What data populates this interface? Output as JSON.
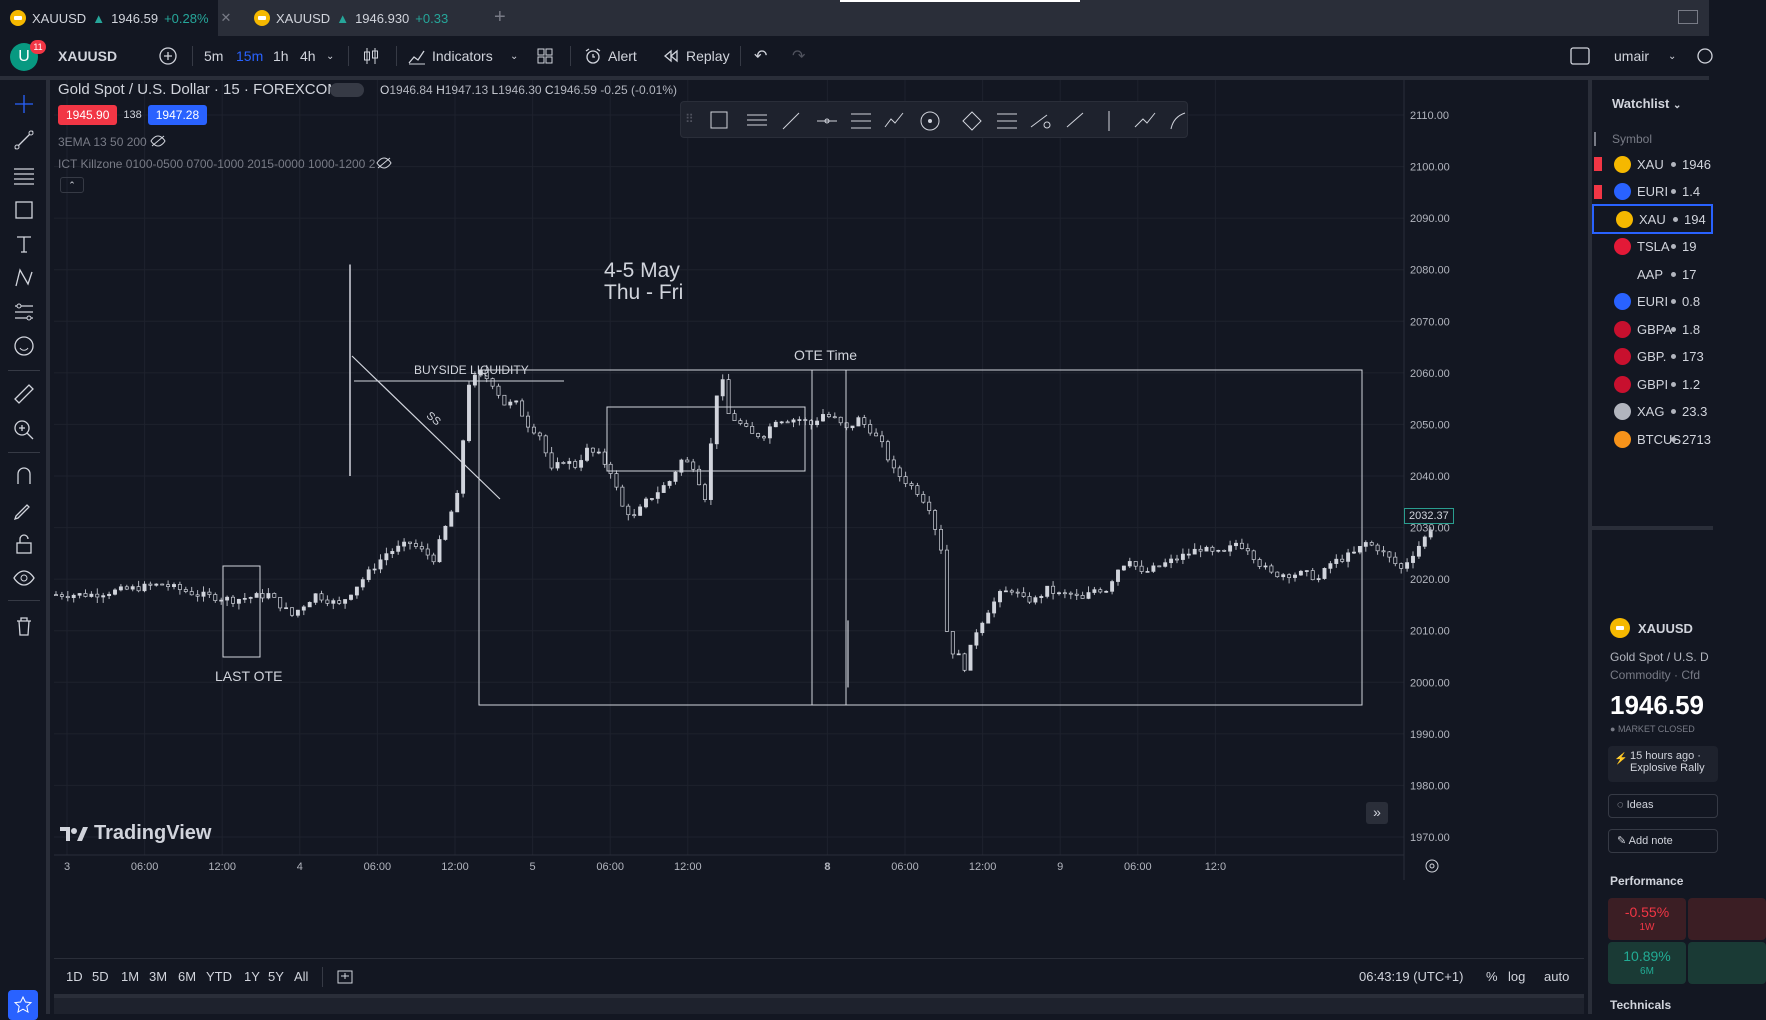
{
  "browser_tabs": [
    {
      "symbol": "XAUUSD",
      "arrow": "▲",
      "price": "1946.59",
      "change": "+0.28%",
      "close": "✕"
    },
    {
      "symbol": "XAUUSD",
      "arrow": "▲",
      "price": "1946.930",
      "change": "+0.33"
    }
  ],
  "new_tab": "+",
  "toolbar": {
    "avatar_letter": "U",
    "notification_count": "11",
    "symbol": "XAUUSD",
    "intervals": [
      "5m",
      "15m",
      "1h",
      "4h"
    ],
    "active_interval": "15m",
    "indicators": "Indicators",
    "alert": "Alert",
    "replay": "Replay",
    "user": "umair"
  },
  "legend": {
    "title": "Gold Spot / U.S. Dollar · 15 · FOREXCOM",
    "o_label": "O",
    "o": "1946.84",
    "h_label": "H",
    "h": "1947.13",
    "l_label": "L",
    "l": "1946.30",
    "c_label": "C",
    "c": "1946.59",
    "change": "-0.25 (-0.01%)",
    "sell": "1945.90",
    "spread": "138",
    "buy": "1947.28",
    "indicator1": "3EMA 13 50 200",
    "indicator2": "ICT Killzone 0100-0500 0700-1000 2015-0000 1000-1200 2"
  },
  "annotations": {
    "date_line1": "4-5 May",
    "date_line2": "Thu - Fri",
    "buyside": "BUYSIDE LIQUIDITY",
    "ssl": "SS",
    "ote_time": "OTE Time",
    "last_ote": "LAST OTE"
  },
  "branding": "TradingView",
  "chart_data": {
    "type": "candlestick",
    "title": "Gold Spot / U.S. Dollar · 15 · FOREXCOM",
    "price_axis_ticks": [
      "2110.00",
      "2100.00",
      "2090.00",
      "2080.00",
      "2070.00",
      "2060.00",
      "2050.00",
      "2040.00",
      "2030.00",
      "2020.00",
      "2010.00",
      "2000.00",
      "1990.00",
      "1980.00",
      "1970.00"
    ],
    "ylim": [
      1965,
      2113
    ],
    "time_axis_ticks": [
      "3",
      "06:00",
      "12:00",
      "4",
      "06:00",
      "12:00",
      "5",
      "06:00",
      "12:00",
      "8",
      "06:00",
      "12:00",
      "9",
      "06:00",
      "12:0"
    ],
    "last_price_label": "2032.37",
    "series": [
      {
        "name": "",
        "points": [
          [
            0,
            2017
          ],
          [
            6,
            2017
          ],
          [
            12,
            2018
          ],
          [
            18,
            2019
          ],
          [
            24,
            2017
          ],
          [
            30,
            2016
          ],
          [
            36,
            2017
          ],
          [
            40,
            2013
          ],
          [
            44,
            2017
          ],
          [
            48,
            2015
          ],
          [
            52,
            2020
          ],
          [
            56,
            2025
          ],
          [
            60,
            2027
          ],
          [
            64,
            2024
          ],
          [
            66,
            2030
          ],
          [
            68,
            2036
          ],
          [
            70,
            2058
          ],
          [
            72,
            2060
          ],
          [
            74,
            2058
          ],
          [
            76,
            2054
          ],
          [
            78,
            2054
          ],
          [
            80,
            2050
          ],
          [
            82,
            2048
          ],
          [
            84,
            2041
          ],
          [
            86,
            2043
          ],
          [
            88,
            2042
          ],
          [
            90,
            2045
          ],
          [
            92,
            2044
          ],
          [
            94,
            2041
          ],
          [
            96,
            2034
          ],
          [
            98,
            2032
          ],
          [
            100,
            2035
          ],
          [
            102,
            2037
          ],
          [
            104,
            2039
          ],
          [
            106,
            2043
          ],
          [
            108,
            2042
          ],
          [
            110,
            2036
          ],
          [
            111,
            2046
          ],
          [
            112,
            2056
          ],
          [
            113,
            2058
          ],
          [
            114,
            2052
          ],
          [
            116,
            2050
          ],
          [
            118,
            2048
          ],
          [
            120,
            2048
          ],
          [
            122,
            2051
          ],
          [
            124,
            2051
          ],
          [
            126,
            2051
          ],
          [
            128,
            2050
          ],
          [
            130,
            2052
          ],
          [
            132,
            2051
          ],
          [
            134,
            2049
          ],
          [
            136,
            2051
          ],
          [
            138,
            2049
          ],
          [
            140,
            2046
          ],
          [
            142,
            2041
          ],
          [
            144,
            2039
          ],
          [
            146,
            2037
          ],
          [
            148,
            2034
          ],
          [
            150,
            2026
          ],
          [
            151,
            2010
          ],
          [
            152,
            2006
          ],
          [
            153,
            2005
          ],
          [
            154,
            2003
          ],
          [
            156,
            2010
          ],
          [
            158,
            2014
          ],
          [
            160,
            2017
          ],
          [
            162,
            2018
          ],
          [
            164,
            2016
          ],
          [
            166,
            2016
          ],
          [
            168,
            2018
          ],
          [
            170,
            2017
          ],
          [
            172,
            2017
          ],
          [
            174,
            2016
          ],
          [
            176,
            2018
          ],
          [
            178,
            2018
          ],
          [
            180,
            2022
          ],
          [
            182,
            2024
          ],
          [
            184,
            2021
          ],
          [
            186,
            2022
          ],
          [
            188,
            2023
          ],
          [
            190,
            2024
          ],
          [
            192,
            2025
          ],
          [
            194,
            2026
          ],
          [
            196,
            2025
          ],
          [
            198,
            2025
          ],
          [
            200,
            2027
          ],
          [
            202,
            2026
          ],
          [
            204,
            2023
          ],
          [
            206,
            2021
          ],
          [
            208,
            2021
          ],
          [
            210,
            2021
          ],
          [
            212,
            2021
          ],
          [
            214,
            2020
          ],
          [
            216,
            2023
          ],
          [
            218,
            2024
          ],
          [
            220,
            2025
          ],
          [
            222,
            2027
          ],
          [
            224,
            2026
          ],
          [
            226,
            2024
          ],
          [
            228,
            2022
          ],
          [
            230,
            2025
          ],
          [
            232,
            2028
          ],
          [
            234,
            2032
          ]
        ]
      }
    ],
    "annotations": [
      "BUYSIDE LIQUIDITY",
      "SS",
      "OTE Time",
      "LAST OTE",
      "4-5 May Thu - Fri"
    ]
  },
  "bottombar": {
    "ranges": [
      "1D",
      "5D",
      "1M",
      "3M",
      "6M",
      "YTD",
      "1Y",
      "5Y",
      "All"
    ],
    "clock": "06:43:19 (UTC+1)",
    "percent": "%",
    "log": "log",
    "auto": "auto"
  },
  "watchlist": {
    "title": "Watchlist",
    "column": "Symbol",
    "rows": [
      {
        "sym": "XAU",
        "price": "1946",
        "color": "#f5b800",
        "flag": true
      },
      {
        "sym": "EURI",
        "price": "1.4",
        "color": "#2962ff",
        "flag": true
      },
      {
        "sym": "XAU",
        "price": "194",
        "color": "#f5b800",
        "selected": true
      },
      {
        "sym": "TSLA",
        "price": "19",
        "color": "#e31937"
      },
      {
        "sym": "AAP",
        "price": "17",
        "color": "#131722"
      },
      {
        "sym": "EURI",
        "price": "0.8",
        "color": "#2962ff"
      },
      {
        "sym": "GBPA",
        "price": "1.8",
        "color": "#c8102e"
      },
      {
        "sym": "GBP.",
        "price": "173",
        "color": "#c8102e"
      },
      {
        "sym": "GBPI",
        "price": "1.2",
        "color": "#c8102e"
      },
      {
        "sym": "XAG",
        "price": "23.3",
        "color": "#b2b5be"
      },
      {
        "sym": "BTCUS",
        "price": "2713",
        "color": "#f7931a"
      }
    ]
  },
  "details": {
    "symbol": "XAUUSD",
    "name": "Gold Spot / U.S. D",
    "category": "Commodity · Cfd",
    "price": "1946.59",
    "status": "MARKET CLOSED",
    "news_time": "15 hours ago ·",
    "news_title": "Explosive Rally",
    "ideas": "Ideas",
    "add_note": "Add note",
    "performance": "Performance",
    "perf": [
      {
        "value": "-0.55%",
        "period": "1W"
      },
      {
        "value": "10.89%",
        "period": "6M"
      }
    ],
    "technicals": "Technicals"
  }
}
